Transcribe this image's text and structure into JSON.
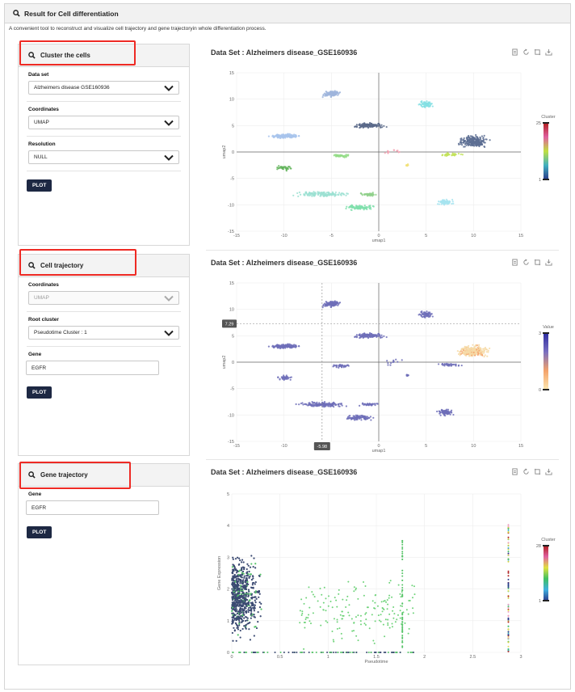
{
  "header": {
    "title": "Result for Cell differentiation"
  },
  "intro": "A convenient tool to reconstruct and visualize cell trajectory and gene trajectoryin whole differentiation process.",
  "colors": {
    "accent": "#1d2843",
    "highlight": "#ee2a24"
  },
  "cluster_panel": {
    "title": "Cluster the cells",
    "dataset_label": "Data set",
    "dataset_value": "Alzheimers disease  GSE160936",
    "coord_label": "Coordinates",
    "coord_value": "UMAP",
    "resolution_label": "Resolution",
    "resolution_value": "NULL",
    "plot_label": "PLOT"
  },
  "trajectory_panel": {
    "title": "Cell trajectory",
    "coord_label": "Coordinates",
    "coord_value": "UMAP",
    "root_label": "Root cluster",
    "root_value": "Pseudotime Cluster : 1",
    "gene_label": "Gene",
    "gene_value": "EGFR",
    "plot_label": "PLOT"
  },
  "gene_panel": {
    "title": "Gene trajectory",
    "gene_label": "Gene",
    "gene_value": "EGFR",
    "plot_label": "PLOT"
  },
  "plot1": {
    "title": "Data Set : Alzheimers disease_GSE160936",
    "xlabel": "umap1",
    "ylabel": "umap2",
    "xticks": [
      "-15",
      "-10",
      "-5",
      "0",
      "5",
      "10",
      "15"
    ],
    "yticks": [
      "15",
      "10",
      "5",
      "0",
      "-5",
      "-10",
      "-15"
    ],
    "legend_title": "Cluster",
    "legend_max": "25",
    "legend_min": "1"
  },
  "plot2": {
    "title": "Data Set : Alzheimers disease_GSE160936",
    "xlabel": "umap1",
    "ylabel": "umap2",
    "xticks": [
      "-15",
      "-10",
      "",
      "0",
      "5",
      "10",
      "15"
    ],
    "yticks": [
      "15",
      "10",
      "5",
      "0",
      "-5",
      "-10",
      "-15"
    ],
    "legend_title": "Value",
    "legend_max": "3",
    "legend_min": "0",
    "crosshair_y": "7.29",
    "crosshair_x": "-5.98"
  },
  "plot3": {
    "title": "Data Set : Alzheimers disease_GSE160936",
    "xlabel": "Pseudotime",
    "ylabel": "Gene Expression",
    "xticks": [
      "0",
      "0.5",
      "1",
      "1.5",
      "2",
      "2.5",
      "3"
    ],
    "yticks": [
      "5",
      "4",
      "3",
      "2",
      "1",
      "0"
    ],
    "legend_title": "Cluster",
    "legend_max": "28",
    "legend_min": "1"
  },
  "toolbar": {
    "icons": [
      "document-icon",
      "refresh-icon",
      "crop-icon",
      "download-icon"
    ]
  }
}
